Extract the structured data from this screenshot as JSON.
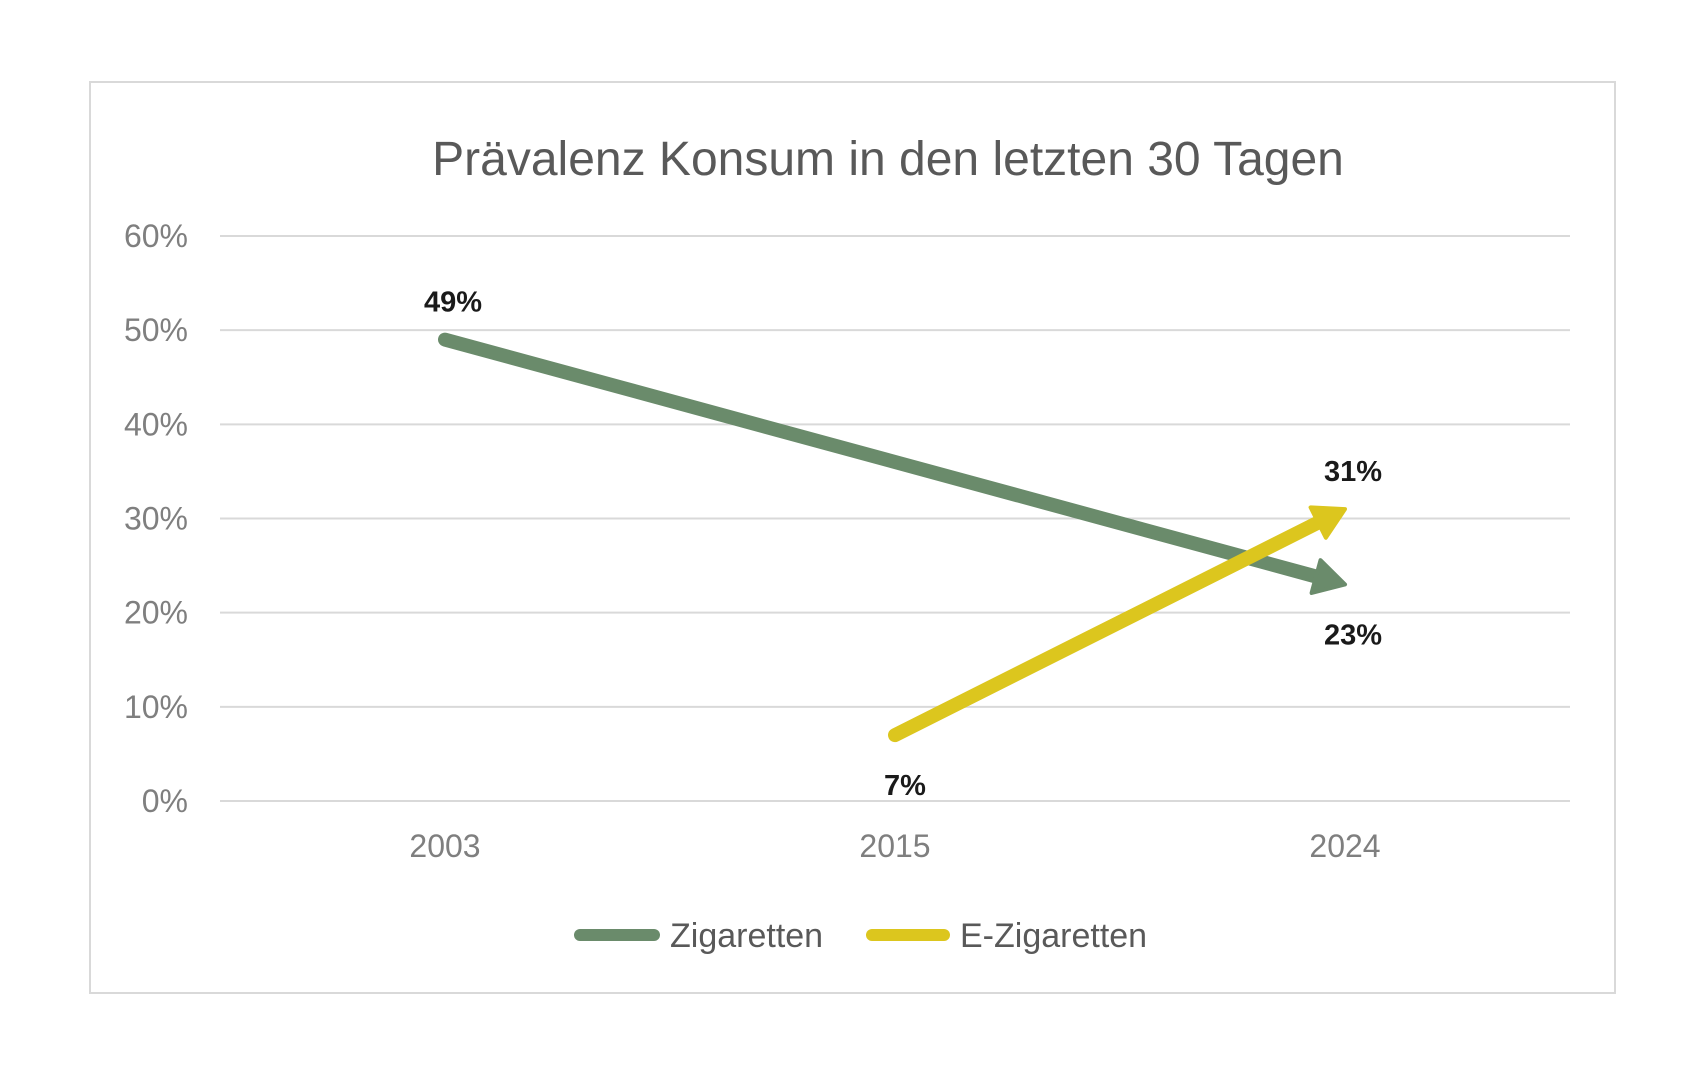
{
  "chart_data": {
    "type": "line",
    "title": "Prävalenz Konsum in den letzten 30 Tagen",
    "categories": [
      "2003",
      "2015",
      "2024"
    ],
    "ylim": [
      0,
      60
    ],
    "yticks": [
      0,
      10,
      20,
      30,
      40,
      50,
      60
    ],
    "ytick_labels": [
      "0%",
      "10%",
      "20%",
      "30%",
      "40%",
      "50%",
      "60%"
    ],
    "grid": true,
    "legend_position": "bottom",
    "series": [
      {
        "name": "Zigaretten",
        "color": "#6a8b6b",
        "points": [
          {
            "x": "2003",
            "y": 49,
            "label": "49%",
            "label_position": "above"
          },
          {
            "x": "2024",
            "y": 23,
            "label": "23%",
            "label_position": "below"
          }
        ],
        "arrow_end": true
      },
      {
        "name": "E-Zigaretten",
        "color": "#dcc61e",
        "points": [
          {
            "x": "2015",
            "y": 7,
            "label": "7%",
            "label_position": "below"
          },
          {
            "x": "2024",
            "y": 31,
            "label": "31%",
            "label_position": "above"
          }
        ],
        "arrow_end": true
      }
    ]
  }
}
